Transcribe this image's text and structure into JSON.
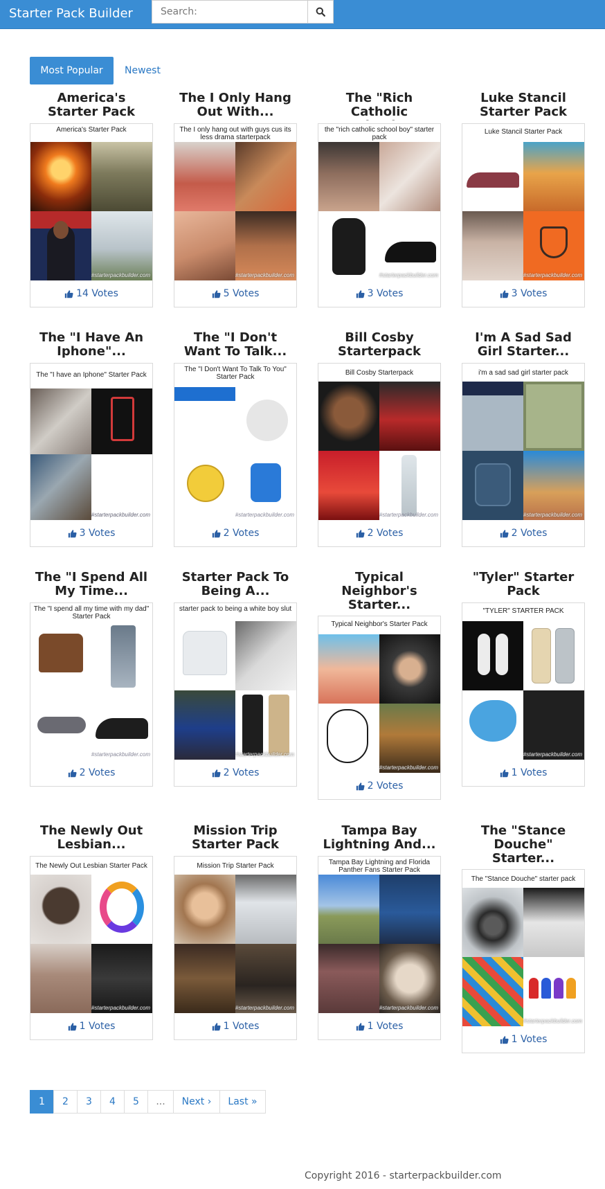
{
  "navbar": {
    "brand": "Starter Pack Builder",
    "search_placeholder": "Search:",
    "search_icon": "search-icon",
    "color": "#3a8dd4"
  },
  "tabs": {
    "popular": "Most Popular",
    "newest": "Newest"
  },
  "cards": [
    {
      "title": "America's Starter Pack",
      "caption": "America's Starter Pack",
      "votes": "14 Votes"
    },
    {
      "title": "The I Only Hang Out With...",
      "caption": "The I only hang out with guys cus its less drama starterpack",
      "votes": "5 Votes"
    },
    {
      "title": "The \"Rich Catholic School...",
      "caption": "the \"rich catholic school boy\" starter pack",
      "votes": "3 Votes"
    },
    {
      "title": "Luke Stancil Starter Pack",
      "caption": "Luke Stancil Starter Pack",
      "votes": "3 Votes"
    },
    {
      "title": "The \"I Have An Iphone\"...",
      "caption": "The \"I have an Iphone\" Starter Pack",
      "votes": "3 Votes"
    },
    {
      "title": "The \"I Don't Want To Talk...",
      "caption": "The \"I Don't Want To Talk To You\" Starter Pack",
      "votes": "2 Votes"
    },
    {
      "title": "Bill Cosby Starterpack",
      "caption": "Bill Cosby Starterpack",
      "votes": "2 Votes"
    },
    {
      "title": "I'm A Sad Sad Girl Starter...",
      "caption": "i'm a sad sad girl starter pack",
      "votes": "2 Votes"
    },
    {
      "title": "The \"I Spend All My Time...",
      "caption": "The \"I spend all my time with my dad\" Starter Pack",
      "votes": "2 Votes"
    },
    {
      "title": "Starter Pack To Being A...",
      "caption": "starter pack to being a white boy slut",
      "votes": "2 Votes"
    },
    {
      "title": "Typical Neighbor's Starter...",
      "caption": "Typical Neighbor's Starter Pack",
      "votes": "2 Votes"
    },
    {
      "title": "\"Tyler\" Starter Pack",
      "caption": "\"TYLER\" STARTER PACK",
      "votes": "1 Votes"
    },
    {
      "title": "The Newly Out Lesbian...",
      "caption": "The Newly Out Lesbian Starter Pack",
      "votes": "1 Votes"
    },
    {
      "title": "Mission Trip Starter Pack",
      "caption": "Mission Trip Starter Pack",
      "votes": "1 Votes"
    },
    {
      "title": "Tampa Bay Lightning And...",
      "caption": "Tampa Bay Lightning and Florida Panther Fans Starter Pack",
      "votes": "1 Votes"
    },
    {
      "title": "The \"Stance Douche\" Starter...",
      "caption": "The \"Stance Douche\" starter pack",
      "votes": "1 Votes"
    }
  ],
  "watermark": "#starterpackbuilder.com",
  "pagination": {
    "p1": "1",
    "p2": "2",
    "p3": "3",
    "p4": "4",
    "p5": "5",
    "ellipsis": "...",
    "next": "Next ›",
    "last": "Last »"
  },
  "footer": {
    "copyright": "Copyright 2016 - starterpackbuilder.com"
  },
  "colors": {
    "primary": "#3a8dd4",
    "link": "#2a78c4",
    "votes": "#2a5fa5"
  }
}
